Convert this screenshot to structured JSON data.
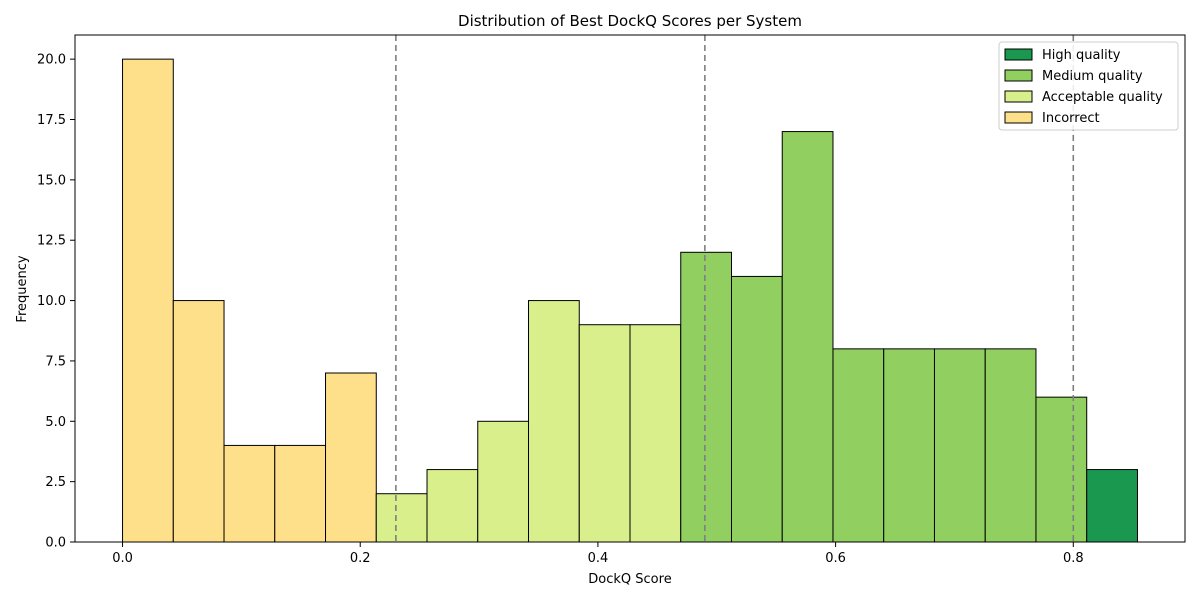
{
  "chart_data": {
    "type": "bar",
    "title": "Distribution of Best DockQ Scores per System",
    "xlabel": "DockQ Score",
    "ylabel": "Frequency",
    "xlim": [
      -0.04,
      0.894
    ],
    "ylim": [
      0,
      21
    ],
    "x_ticks": [
      0.0,
      0.2,
      0.4,
      0.6,
      0.8
    ],
    "x_tick_labels": [
      "0.0",
      "0.2",
      "0.4",
      "0.6",
      "0.8"
    ],
    "y_ticks": [
      0.0,
      2.5,
      5.0,
      7.5,
      10.0,
      12.5,
      15.0,
      17.5,
      20.0
    ],
    "y_tick_labels": [
      "0.0",
      "2.5",
      "5.0",
      "7.5",
      "10.0",
      "12.5",
      "15.0",
      "17.5",
      "20.0"
    ],
    "bin_start": 0.0,
    "bin_width": 0.0427,
    "values": [
      20,
      10,
      4,
      4,
      7,
      2,
      3,
      5,
      10,
      9,
      9,
      12,
      11,
      17,
      8,
      8,
      8,
      8,
      6,
      3
    ],
    "categories": [
      "incorrect",
      "incorrect",
      "incorrect",
      "incorrect",
      "incorrect",
      "acceptable",
      "acceptable",
      "acceptable",
      "acceptable",
      "acceptable",
      "acceptable",
      "medium",
      "medium",
      "medium",
      "medium",
      "medium",
      "medium",
      "medium",
      "medium",
      "high"
    ],
    "thresholds": [
      0.23,
      0.49,
      0.8
    ],
    "grid": false,
    "legend_position": "top-right",
    "legend": [
      {
        "key": "high",
        "label": "High quality",
        "color": "#1a9850"
      },
      {
        "key": "medium",
        "label": "Medium quality",
        "color": "#91cf60"
      },
      {
        "key": "acceptable",
        "label": "Acceptable quality",
        "color": "#d9ef8b"
      },
      {
        "key": "incorrect",
        "label": "Incorrect",
        "color": "#fee08b"
      }
    ],
    "colors": {
      "high": "#1a9850",
      "medium": "#91cf60",
      "acceptable": "#d9ef8b",
      "incorrect": "#fee08b",
      "threshold_line": "#7f7f7f",
      "edge": "#000000"
    }
  }
}
